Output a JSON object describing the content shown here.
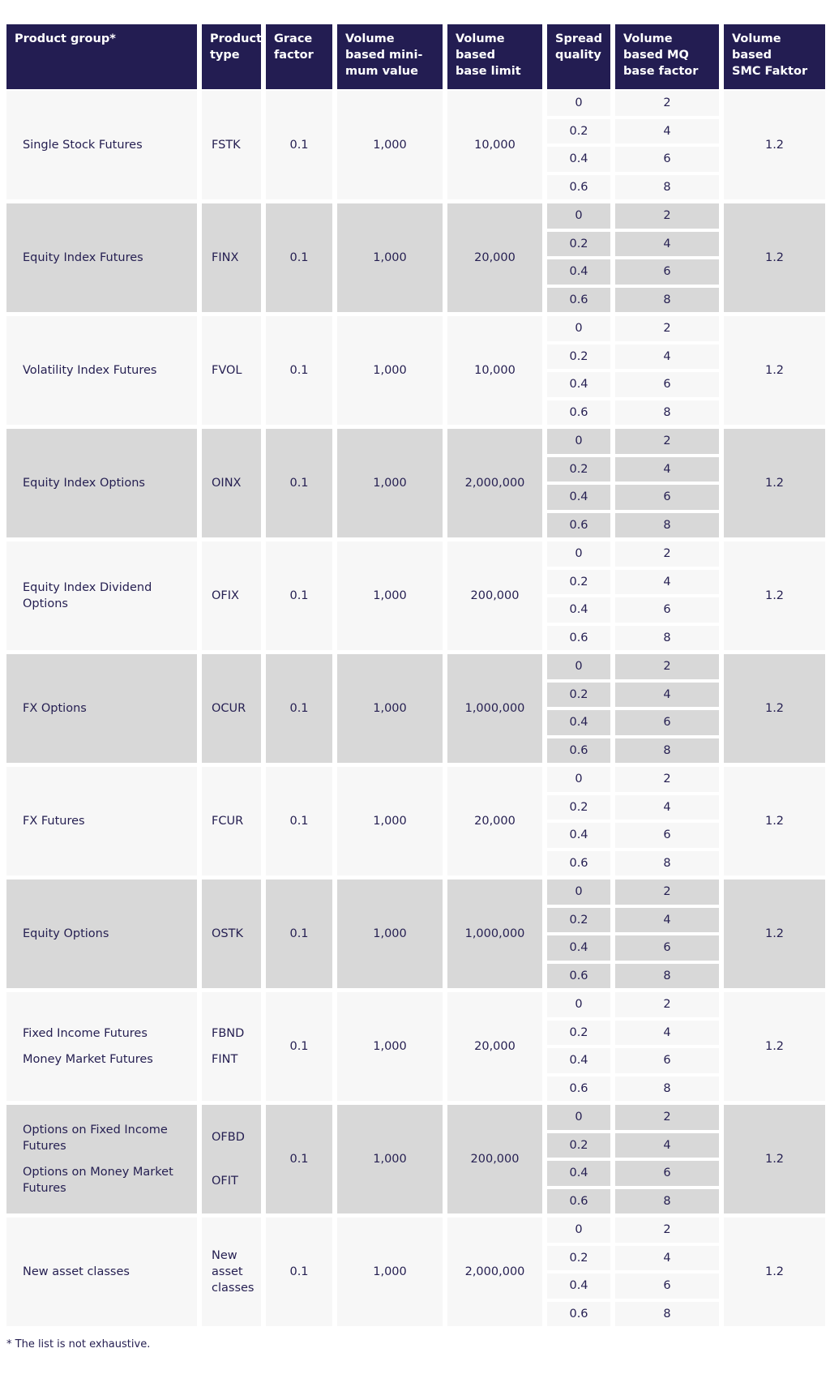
{
  "colors": {
    "header_background": "#231d52",
    "text": "#262052",
    "row_light": "#f7f7f7",
    "row_gray": "#d8d8d8",
    "page_background": "#ffffff"
  },
  "table": {
    "headers": [
      {
        "id": "product_group",
        "label": "Product group*"
      },
      {
        "id": "product_type",
        "label": "Product\ntype"
      },
      {
        "id": "grace_factor",
        "label": "Grace\nfactor"
      },
      {
        "id": "volume_based_minimum_value",
        "label": "Volume\nbased mini-\nmum value"
      },
      {
        "id": "volume_based_base_limit",
        "label": "Volume\nbased\nbase limit"
      },
      {
        "id": "spread_quality",
        "label": "Spread\nquality"
      },
      {
        "id": "volume_based_mq_base_factor",
        "label": "Volume\nbased MQ\nbase factor"
      },
      {
        "id": "volume_based_smc_faktor",
        "label": "Volume\nbased\nSMC Faktor"
      }
    ],
    "groups": [
      {
        "product_group": [
          "Single Stock Futures"
        ],
        "product_type": [
          "FSTK"
        ],
        "grace_factor": "0.1",
        "minimum_value": "1,000",
        "base_limit": "10,000",
        "spread": [
          [
            "0",
            "2"
          ],
          [
            "0.2",
            "4"
          ],
          [
            "0.4",
            "6"
          ],
          [
            "0.6",
            "8"
          ]
        ],
        "smc_faktor": "1.2"
      },
      {
        "product_group": [
          "Equity Index Futures"
        ],
        "product_type": [
          "FINX"
        ],
        "grace_factor": "0.1",
        "minimum_value": "1,000",
        "base_limit": "20,000",
        "spread": [
          [
            "0",
            "2"
          ],
          [
            "0.2",
            "4"
          ],
          [
            "0.4",
            "6"
          ],
          [
            "0.6",
            "8"
          ]
        ],
        "smc_faktor": "1.2"
      },
      {
        "product_group": [
          "Volatility Index Futures"
        ],
        "product_type": [
          "FVOL"
        ],
        "grace_factor": "0.1",
        "minimum_value": "1,000",
        "base_limit": "10,000",
        "spread": [
          [
            "0",
            "2"
          ],
          [
            "0.2",
            "4"
          ],
          [
            "0.4",
            "6"
          ],
          [
            "0.6",
            "8"
          ]
        ],
        "smc_faktor": "1.2"
      },
      {
        "product_group": [
          "Equity Index Options"
        ],
        "product_type": [
          "OINX"
        ],
        "grace_factor": "0.1",
        "minimum_value": "1,000",
        "base_limit": "2,000,000",
        "spread": [
          [
            "0",
            "2"
          ],
          [
            "0.2",
            "4"
          ],
          [
            "0.4",
            "6"
          ],
          [
            "0.6",
            "8"
          ]
        ],
        "smc_faktor": "1.2"
      },
      {
        "product_group": [
          "Equity Index Dividend Options"
        ],
        "product_type": [
          "OFIX"
        ],
        "grace_factor": "0.1",
        "minimum_value": "1,000",
        "base_limit": "200,000",
        "spread": [
          [
            "0",
            "2"
          ],
          [
            "0.2",
            "4"
          ],
          [
            "0.4",
            "6"
          ],
          [
            "0.6",
            "8"
          ]
        ],
        "smc_faktor": "1.2"
      },
      {
        "product_group": [
          "FX Options"
        ],
        "product_type": [
          "OCUR"
        ],
        "grace_factor": "0.1",
        "minimum_value": "1,000",
        "base_limit": "1,000,000",
        "spread": [
          [
            "0",
            "2"
          ],
          [
            "0.2",
            "4"
          ],
          [
            "0.4",
            "6"
          ],
          [
            "0.6",
            "8"
          ]
        ],
        "smc_faktor": "1.2"
      },
      {
        "product_group": [
          "FX Futures"
        ],
        "product_type": [
          "FCUR"
        ],
        "grace_factor": "0.1",
        "minimum_value": "1,000",
        "base_limit": "20,000",
        "spread": [
          [
            "0",
            "2"
          ],
          [
            "0.2",
            "4"
          ],
          [
            "0.4",
            "6"
          ],
          [
            "0.6",
            "8"
          ]
        ],
        "smc_faktor": "1.2"
      },
      {
        "product_group": [
          "Equity Options"
        ],
        "product_type": [
          "OSTK"
        ],
        "grace_factor": "0.1",
        "minimum_value": "1,000",
        "base_limit": "1,000,000",
        "spread": [
          [
            "0",
            "2"
          ],
          [
            "0.2",
            "4"
          ],
          [
            "0.4",
            "6"
          ],
          [
            "0.6",
            "8"
          ]
        ],
        "smc_faktor": "1.2"
      },
      {
        "product_group": [
          "Fixed Income Futures",
          "Money Market Futures"
        ],
        "product_type": [
          "FBND",
          "FINT"
        ],
        "grace_factor": "0.1",
        "minimum_value": "1,000",
        "base_limit": "20,000",
        "spread": [
          [
            "0",
            "2"
          ],
          [
            "0.2",
            "4"
          ],
          [
            "0.4",
            "6"
          ],
          [
            "0.6",
            "8"
          ]
        ],
        "smc_faktor": "1.2"
      },
      {
        "product_group": [
          "Options on Fixed Income Futures",
          "Options on Money Market Futures"
        ],
        "product_type": [
          "OFBD",
          "OFIT"
        ],
        "grace_factor": "0.1",
        "minimum_value": "1,000",
        "base_limit": "200,000",
        "spread": [
          [
            "0",
            "2"
          ],
          [
            "0.2",
            "4"
          ],
          [
            "0.4",
            "6"
          ],
          [
            "0.6",
            "8"
          ]
        ],
        "smc_faktor": "1.2"
      },
      {
        "product_group": [
          "New asset classes"
        ],
        "product_type": [
          "New asset classes"
        ],
        "grace_factor": "0.1",
        "minimum_value": "1,000",
        "base_limit": "2,000,000",
        "spread": [
          [
            "0",
            "2"
          ],
          [
            "0.2",
            "4"
          ],
          [
            "0.4",
            "6"
          ],
          [
            "0.6",
            "8"
          ]
        ],
        "smc_faktor": "1.2"
      }
    ],
    "footnote": "* The list is not exhaustive."
  }
}
